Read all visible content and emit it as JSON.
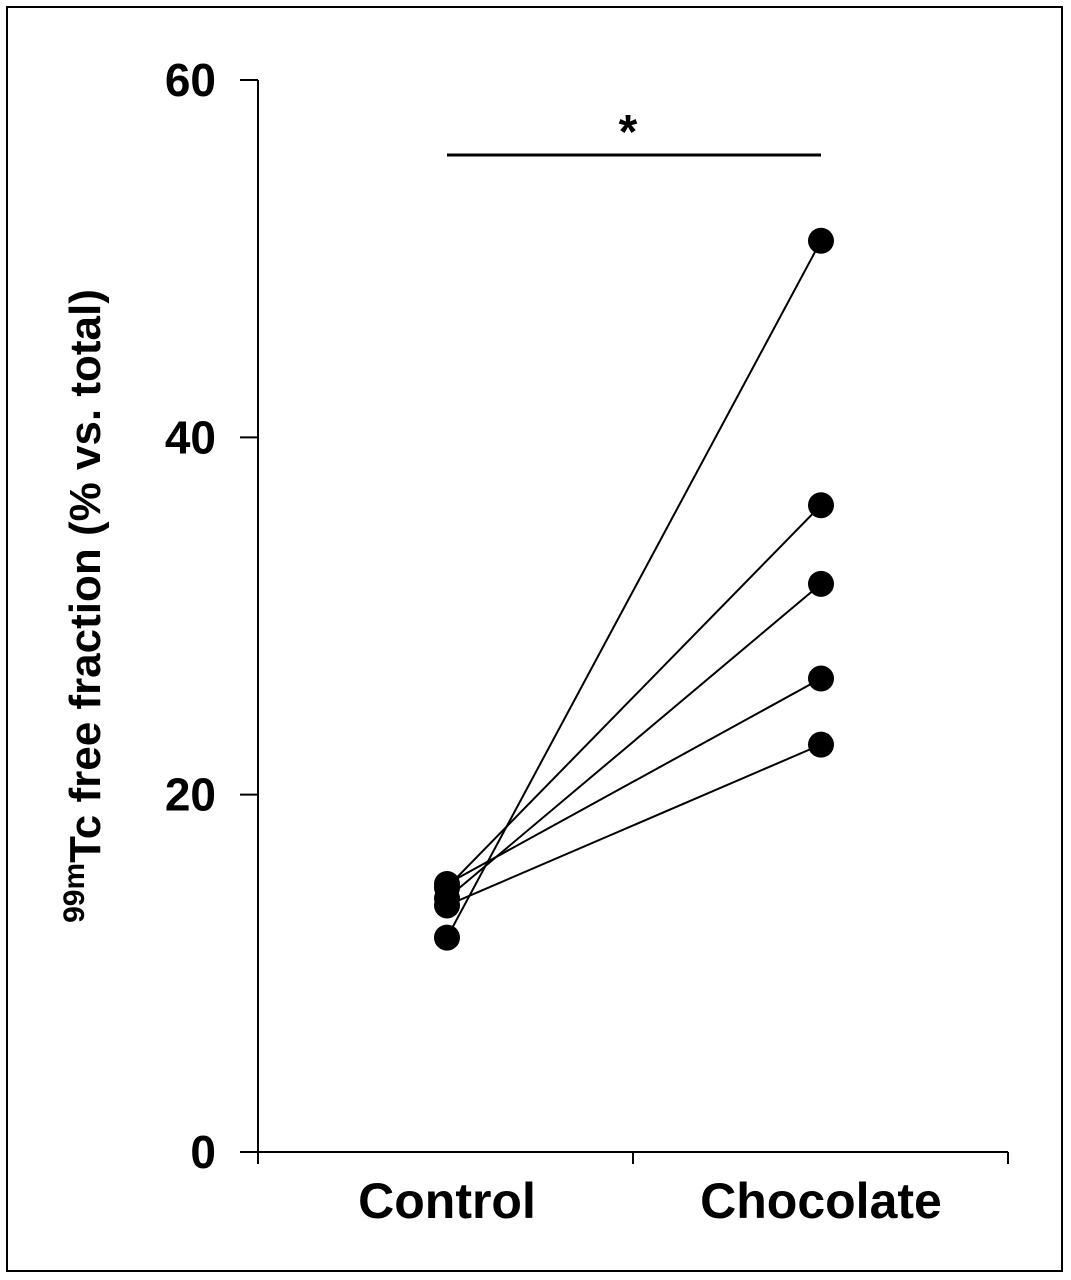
{
  "chart_data": {
    "type": "line",
    "style": "paired-dot-plot",
    "categories": [
      "Control",
      "Chocolate"
    ],
    "ylabel_superscript": "99m",
    "ylabel": "Tc free fraction (% vs. total)",
    "xlabel": "",
    "ylim": [
      0,
      60
    ],
    "yticks": [
      0,
      20,
      40,
      60
    ],
    "grid": false,
    "significance": {
      "label": "*",
      "between": [
        "Control",
        "Chocolate"
      ]
    },
    "pairs": [
      {
        "values": [
          12.0,
          51.0
        ]
      },
      {
        "values": [
          14.8,
          36.2
        ]
      },
      {
        "values": [
          14.2,
          31.8
        ]
      },
      {
        "values": [
          15.0,
          26.5
        ]
      },
      {
        "values": [
          13.8,
          22.8
        ]
      }
    ]
  }
}
